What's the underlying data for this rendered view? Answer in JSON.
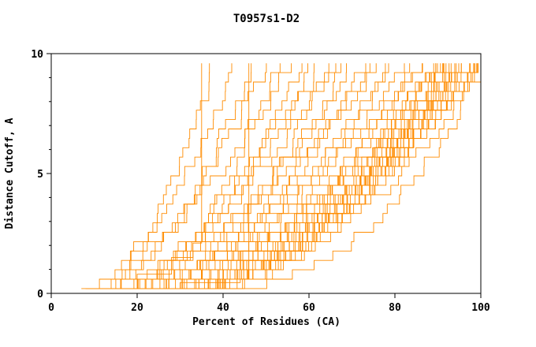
{
  "chart_data": {
    "type": "line",
    "title": "T0957s1-D2",
    "xlabel": "Percent of Residues (CA)",
    "ylabel": "Distance Cutoff, A",
    "xlim": [
      0,
      100
    ],
    "ylim": [
      0,
      10
    ],
    "x_ticks": [
      0,
      20,
      40,
      60,
      80,
      100
    ],
    "y_major_ticks": [
      0,
      5,
      10
    ],
    "y_minor_ticks": [
      1,
      2,
      3,
      4,
      6,
      7,
      8,
      9
    ],
    "grid": false,
    "legend": false,
    "line_color": "#ff8c00",
    "axis_color": "#000000",
    "y_start": 0.2,
    "y_end": 9.6,
    "curves": [
      [
        7,
        38,
        0.55
      ],
      [
        8,
        42,
        0.6
      ],
      [
        8,
        46,
        0.5
      ],
      [
        9,
        50,
        0.65
      ],
      [
        10,
        52,
        0.45
      ],
      [
        10,
        55,
        0.7
      ],
      [
        11,
        58,
        0.5
      ],
      [
        11,
        60,
        0.6
      ],
      [
        12,
        62,
        0.55
      ],
      [
        12,
        64,
        0.4
      ],
      [
        13,
        66,
        0.65
      ],
      [
        13,
        68,
        0.5
      ],
      [
        14,
        70,
        0.6
      ],
      [
        14,
        72,
        0.45
      ],
      [
        15,
        74,
        0.55
      ],
      [
        15,
        76,
        0.7
      ],
      [
        16,
        78,
        0.5
      ],
      [
        16,
        80,
        0.6
      ],
      [
        17,
        82,
        0.55
      ],
      [
        17,
        84,
        0.45
      ],
      [
        18,
        85,
        0.65
      ],
      [
        18,
        86,
        0.5
      ],
      [
        19,
        88,
        0.6
      ],
      [
        19,
        90,
        0.55
      ],
      [
        20,
        91,
        0.4
      ],
      [
        20,
        92,
        0.6
      ],
      [
        21,
        93,
        0.5
      ],
      [
        21,
        94,
        0.65
      ],
      [
        22,
        95,
        0.55
      ],
      [
        22,
        96,
        0.45
      ],
      [
        23,
        97,
        0.6
      ],
      [
        23,
        98,
        0.5
      ],
      [
        24,
        99,
        0.55
      ],
      [
        24,
        100,
        0.65
      ],
      [
        25,
        100,
        0.45
      ],
      [
        26,
        99,
        0.6
      ],
      [
        26,
        98,
        0.5
      ],
      [
        27,
        97,
        0.55
      ],
      [
        28,
        96,
        0.7
      ],
      [
        28,
        95,
        0.5
      ],
      [
        29,
        94,
        0.6
      ],
      [
        30,
        93,
        0.55
      ],
      [
        30,
        92,
        0.45
      ],
      [
        31,
        91,
        0.6
      ],
      [
        32,
        90,
        0.5
      ],
      [
        33,
        89,
        0.65
      ],
      [
        34,
        88,
        0.55
      ],
      [
        27,
        100,
        0.35
      ]
    ],
    "explicit_curves": [
      {
        "points": [
          [
            10,
            0.2
          ],
          [
            20,
            0.8
          ],
          [
            28,
            1.5
          ],
          [
            33,
            2.1
          ],
          [
            35,
            2.4
          ],
          [
            35,
            9.6
          ]
        ]
      },
      {
        "points": [
          [
            12,
            0.2
          ],
          [
            30,
            0.45
          ],
          [
            44,
            0.6
          ],
          [
            46,
            0.7
          ],
          [
            46,
            9.6
          ]
        ]
      }
    ]
  }
}
